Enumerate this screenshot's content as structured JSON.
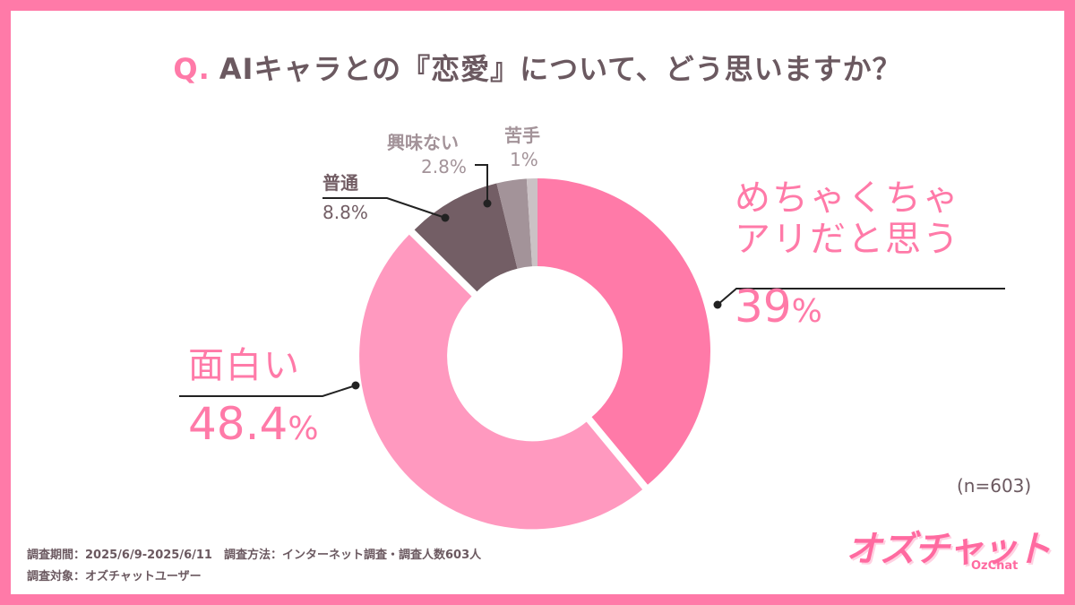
{
  "title": {
    "prefix": "Q.",
    "text": "AIキャラとの『恋愛』について、どう思いますか？"
  },
  "chart_data": {
    "type": "pie",
    "donut": true,
    "slices": [
      {
        "label_lines": [
          "めちゃくちゃ",
          "アリだと思う"
        ],
        "value": 39,
        "value_text": "39",
        "color": "#ff7aa8"
      },
      {
        "label_lines": [
          "面白い"
        ],
        "value": 48.4,
        "value_text": "48.4",
        "color": "#ff99bf"
      },
      {
        "label_lines": [
          "普通"
        ],
        "value": 8.8,
        "value_text": "8.8",
        "color": "#735e65"
      },
      {
        "label_lines": [
          "興味ない"
        ],
        "value": 2.8,
        "value_text": "2.8",
        "color": "#a39399"
      },
      {
        "label_lines": [
          "苦手"
        ],
        "value": 1,
        "value_text": "1",
        "color": "#cbc2c5"
      }
    ],
    "unit": "%",
    "sample_size": "(n=603)"
  },
  "footer": {
    "line1": "調査期間：2025/6/9-2025/6/11　調査方法：インターネット調査・調査人数603人",
    "line2": "調査対象：オズチャットユーザー"
  },
  "logo": {
    "text": "オズチャット",
    "sub": "OzChat",
    "color": "#ff6aa0"
  },
  "colors": {
    "border": "#ff7aa8",
    "text": "#6b5960"
  }
}
